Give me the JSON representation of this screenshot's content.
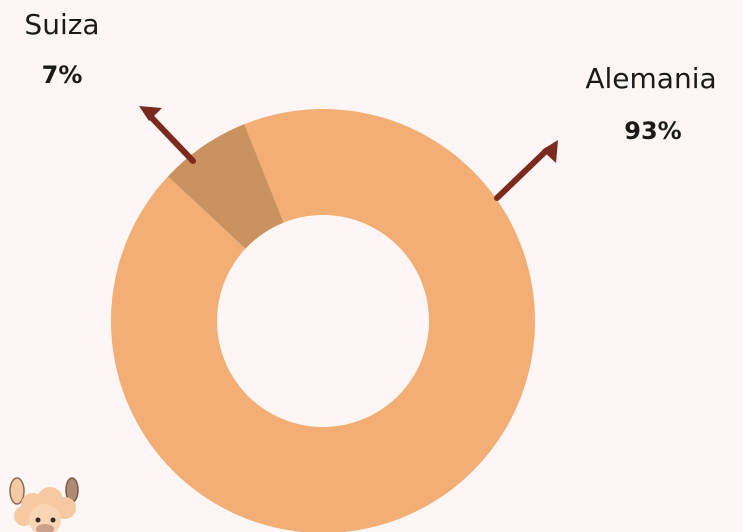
{
  "chart_data": {
    "type": "pie",
    "variant": "donut",
    "categories": [
      "Alemania",
      "Suiza"
    ],
    "values": [
      93,
      7
    ],
    "value_labels": [
      "93%",
      "7%"
    ],
    "colors": [
      "#f2ae74",
      "#c9925f"
    ],
    "arrow_color": "#7b2a1f",
    "title": "",
    "legend": "none",
    "annotations": "category labels with arrows pointing to slices"
  },
  "decoration": {
    "mascot_icon": "alpaca-icon"
  }
}
